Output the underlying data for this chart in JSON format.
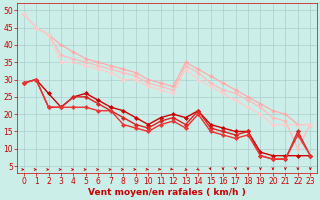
{
  "background_color": "#cceee8",
  "grid_color": "#aacccc",
  "xlabel": "Vent moyen/en rafales ( km/h )",
  "xlabel_color": "#cc0000",
  "xlabel_fontsize": 6.5,
  "tick_color": "#cc0000",
  "tick_fontsize": 5.5,
  "ylim": [
    3,
    52
  ],
  "xlim": [
    -0.5,
    23.5
  ],
  "yticks": [
    5,
    10,
    15,
    20,
    25,
    30,
    35,
    40,
    45,
    50
  ],
  "xticks": [
    0,
    1,
    2,
    3,
    4,
    5,
    6,
    7,
    8,
    9,
    10,
    11,
    12,
    13,
    14,
    15,
    16,
    17,
    18,
    19,
    20,
    21,
    22,
    23
  ],
  "lines_light": [
    {
      "x": [
        0,
        1,
        2,
        3,
        4,
        5,
        6,
        7,
        8,
        9,
        10,
        11,
        12,
        13,
        14,
        15,
        16,
        17,
        18,
        19,
        20,
        21,
        22,
        23
      ],
      "y": [
        49,
        45,
        43,
        40,
        38,
        36,
        35,
        34,
        33,
        32,
        30,
        29,
        28,
        35,
        33,
        31,
        29,
        27,
        25,
        23,
        21,
        20,
        17,
        17
      ],
      "color": "#ffaaaa",
      "lw": 0.9,
      "ms": 2.0
    },
    {
      "x": [
        0,
        1,
        2,
        3,
        4,
        5,
        6,
        7,
        8,
        9,
        10,
        11,
        12,
        13,
        14,
        15,
        16,
        17,
        18,
        19,
        20,
        21,
        22,
        23
      ],
      "y": [
        49,
        45,
        43,
        37,
        36,
        35,
        34,
        33,
        32,
        31,
        29,
        28,
        27,
        34,
        32,
        29,
        27,
        26,
        24,
        22,
        19,
        18,
        10,
        17
      ],
      "color": "#ffbbbb",
      "lw": 0.9,
      "ms": 2.0
    },
    {
      "x": [
        0,
        1,
        2,
        3,
        4,
        5,
        6,
        7,
        8,
        9,
        10,
        11,
        12,
        13,
        14,
        15,
        16,
        17,
        18,
        19,
        20,
        21,
        22,
        23
      ],
      "y": [
        49,
        45,
        43,
        35,
        35,
        34,
        33,
        32,
        30,
        30,
        28,
        27,
        26,
        33,
        30,
        28,
        26,
        24,
        22,
        20,
        17,
        17,
        17,
        17
      ],
      "color": "#ffcccc",
      "lw": 0.9,
      "ms": 2.0
    }
  ],
  "lines_dark": [
    {
      "x": [
        0,
        1,
        2,
        3,
        4,
        5,
        6,
        7,
        8,
        9,
        10,
        11,
        12,
        13,
        14,
        15,
        16,
        17,
        18,
        19,
        20,
        21,
        22,
        23
      ],
      "y": [
        29,
        30,
        26,
        22,
        25,
        26,
        24,
        22,
        21,
        19,
        17,
        19,
        20,
        19,
        21,
        17,
        16,
        15,
        15,
        9,
        8,
        8,
        8,
        8
      ],
      "color": "#cc0000",
      "lw": 1.0,
      "ms": 2.2
    },
    {
      "x": [
        0,
        1,
        2,
        3,
        4,
        5,
        6,
        7,
        8,
        9,
        10,
        11,
        12,
        13,
        14,
        15,
        16,
        17,
        18,
        19,
        20,
        21,
        22,
        23
      ],
      "y": [
        29,
        30,
        22,
        22,
        25,
        25,
        23,
        21,
        19,
        17,
        16,
        18,
        19,
        17,
        21,
        16,
        15,
        14,
        15,
        8,
        7,
        7,
        15,
        8
      ],
      "color": "#dd2222",
      "lw": 1.0,
      "ms": 2.2
    },
    {
      "x": [
        0,
        1,
        2,
        3,
        4,
        5,
        6,
        7,
        8,
        9,
        10,
        11,
        12,
        13,
        14,
        15,
        16,
        17,
        18,
        19,
        20,
        21,
        22,
        23
      ],
      "y": [
        29,
        30,
        22,
        22,
        22,
        22,
        21,
        21,
        17,
        16,
        15,
        17,
        18,
        16,
        20,
        15,
        14,
        13,
        14,
        8,
        7,
        7,
        14,
        8
      ],
      "color": "#ee3333",
      "lw": 1.0,
      "ms": 2.2
    }
  ],
  "wind_dirs": [
    0,
    0,
    0,
    0,
    0,
    0,
    0,
    0,
    10,
    15,
    25,
    30,
    40,
    55,
    70,
    85,
    90,
    90,
    90,
    90,
    90,
    90,
    90,
    90
  ]
}
